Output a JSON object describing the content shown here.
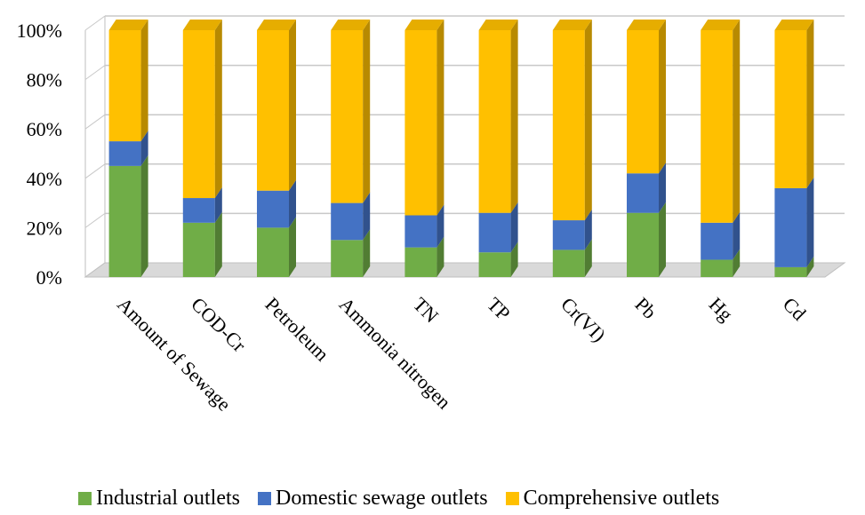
{
  "chart_data": {
    "type": "bar",
    "stacked": "percent",
    "categories": [
      "Amount of Sewage",
      "COD-Cr",
      "Petroleum",
      "Ammonia nitrogen",
      "TN",
      "TP",
      "Cr(VI)",
      "Pb",
      "Hg",
      "Cd"
    ],
    "series": [
      {
        "name": "Industrial outlets",
        "color": "#70ad47",
        "values": [
          45,
          22,
          20,
          15,
          12,
          10,
          11,
          26,
          7,
          4
        ]
      },
      {
        "name": "Domestic sewage outlets",
        "color": "#4472c4",
        "values": [
          10,
          10,
          15,
          15,
          13,
          16,
          12,
          16,
          15,
          32
        ]
      },
      {
        "name": "Comprehensive outlets",
        "color": "#ffc000",
        "values": [
          45,
          68,
          65,
          70,
          75,
          74,
          77,
          58,
          78,
          64
        ]
      }
    ],
    "ylim": [
      0,
      100
    ],
    "yticks": [
      "0%",
      "20%",
      "40%",
      "60%",
      "80%",
      "100%"
    ],
    "grid": true,
    "legend_position": "bottom",
    "style": "3d"
  }
}
